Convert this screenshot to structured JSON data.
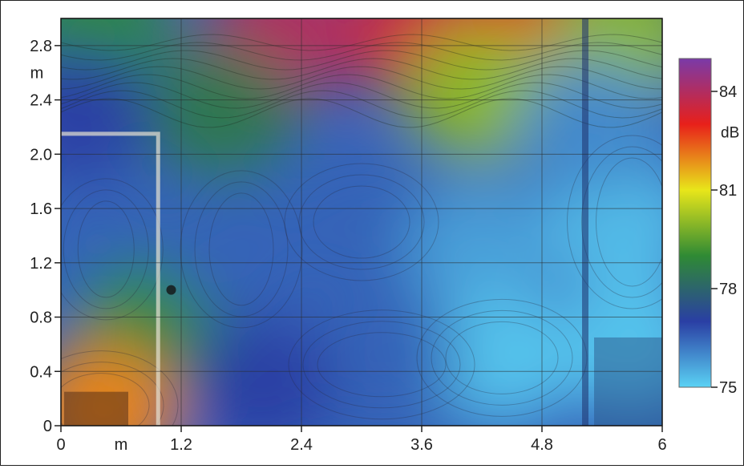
{
  "chart_data": {
    "type": "heatmap",
    "title": "",
    "xlabel": "m",
    "ylabel": "m",
    "xlim": [
      0,
      6
    ],
    "ylim": [
      0,
      3.0
    ],
    "x_ticks": [
      "0",
      "1.2",
      "2.4",
      "3.6",
      "4.8",
      "6"
    ],
    "y_ticks": [
      "0",
      "0.4",
      "0.8",
      "1.2",
      "1.6",
      "2.0",
      "2.4",
      "2.8"
    ],
    "colorbar": {
      "label": "dB",
      "range": [
        75,
        85
      ],
      "ticks": [
        "75",
        "78",
        "81",
        "84"
      ],
      "colors": [
        "#5ad2f4",
        "#2a3fa4",
        "#2f8a34",
        "#e8e61a",
        "#e8201a",
        "#7a3aa8"
      ]
    },
    "grid": true,
    "levels": [
      {
        "x": 0.3,
        "y": 2.9,
        "db": 79.0
      },
      {
        "x": 2.2,
        "y": 2.9,
        "db": 84.0
      },
      {
        "x": 3.6,
        "y": 2.9,
        "db": 83.5
      },
      {
        "x": 4.6,
        "y": 2.85,
        "db": 83.0
      },
      {
        "x": 5.6,
        "y": 2.85,
        "db": 80.0
      },
      {
        "x": 4.2,
        "y": 2.45,
        "db": 80.0
      },
      {
        "x": 1.6,
        "y": 2.3,
        "db": 78.5
      },
      {
        "x": 0.15,
        "y": 2.3,
        "db": 77.0
      },
      {
        "x": 0.4,
        "y": 1.3,
        "db": 76.5
      },
      {
        "x": 0.9,
        "y": 0.7,
        "db": 79.0
      },
      {
        "x": 0.4,
        "y": 0.1,
        "db": 82.0
      },
      {
        "x": 1.8,
        "y": 1.3,
        "db": 76.5
      },
      {
        "x": 3.0,
        "y": 1.5,
        "db": 76.5
      },
      {
        "x": 4.2,
        "y": 1.3,
        "db": 75.7
      },
      {
        "x": 5.6,
        "y": 1.5,
        "db": 75.3
      },
      {
        "x": 5.7,
        "y": 0.6,
        "db": 75.2
      },
      {
        "x": 4.4,
        "y": 0.5,
        "db": 75.2
      },
      {
        "x": 3.2,
        "y": 0.5,
        "db": 76.5
      },
      {
        "x": 2.0,
        "y": 0.3,
        "db": 77.0
      },
      {
        "x": 5.3,
        "y": 2.2,
        "db": 76.0
      }
    ]
  }
}
